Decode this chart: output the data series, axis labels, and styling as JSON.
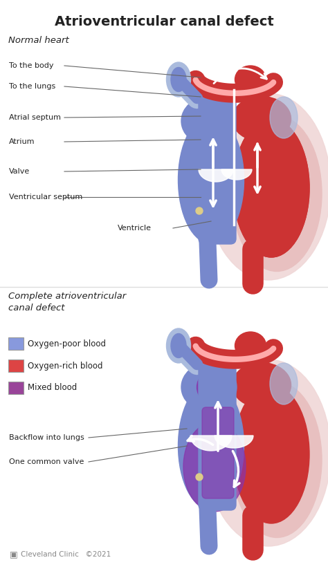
{
  "title": "Atrioventricular canal defect",
  "title_fontsize": 14,
  "title_fontweight": "bold",
  "bg_color": "#ffffff",
  "section1_label": "Normal heart",
  "section2_label": "Complete atrioventricular\ncanal defect",
  "legend_items": [
    {
      "color": "#8899dd",
      "label": "Oxygen-poor blood"
    },
    {
      "color": "#dd4444",
      "label": "Oxygen-rich blood"
    },
    {
      "color": "#994499",
      "label": "Mixed blood"
    }
  ],
  "blue": "#7788cc",
  "blue_light": "#aabbdd",
  "blue_dark": "#5566aa",
  "red": "#cc3333",
  "red_light": "#ee8888",
  "red_dark": "#aa2222",
  "pink": "#e8c0c0",
  "pink_light": "#f0d8d8",
  "purple": "#8833aa",
  "purple_light": "#aa66cc",
  "yellow": "#ddcc88",
  "white": "#ffffff",
  "outline": "#ccaaaa",
  "text_color": "#222222",
  "line_color": "#666666",
  "footer_color": "#888888"
}
